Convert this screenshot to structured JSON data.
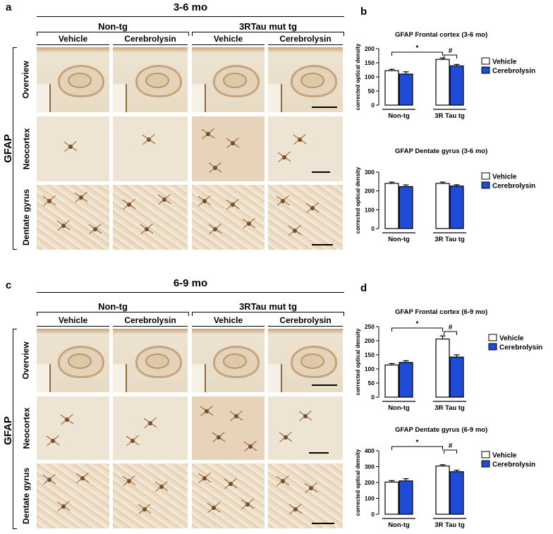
{
  "panels": {
    "a": "a",
    "b": "b",
    "c": "c",
    "d": "d"
  },
  "top": {
    "period": "3-6 mo",
    "groups": [
      "Non-tg",
      "3RTau mut tg"
    ],
    "conditions": [
      "Vehicle",
      "Cerebrolysin",
      "Vehicle",
      "Cerebrolysin"
    ],
    "rows": [
      "Overview",
      "Neocortex",
      "Dentate gyrus"
    ],
    "stain": "GFAP"
  },
  "bottom": {
    "period": "6-9 mo",
    "groups": [
      "Non-tg",
      "3RTau mut tg"
    ],
    "conditions": [
      "Vehicle",
      "Cerebrolysin",
      "Vehicle",
      "Cerebrolysin"
    ],
    "rows": [
      "Overview",
      "Neocortex",
      "Dentate gyrus"
    ],
    "stain": "GFAP"
  },
  "colors": {
    "vehicle": "#ffffff",
    "cerebrolysin": "#1e4bd8",
    "axis": "#000000"
  },
  "chart_data": [
    {
      "id": "b1",
      "type": "bar",
      "title": "GFAP Frontal cortex (3-6 mo)",
      "ylabel": "corrected optical density",
      "ylim": [
        0,
        200
      ],
      "yticks": [
        0,
        50,
        100,
        150,
        200
      ],
      "categories": [
        "Non-tg",
        "3R Tau tg"
      ],
      "series": [
        {
          "name": "Vehicle",
          "values": [
            122,
            162
          ],
          "errors": [
            5,
            5
          ]
        },
        {
          "name": "Cerebrolysin",
          "values": [
            110,
            139
          ],
          "errors": [
            8,
            5
          ]
        }
      ],
      "sig": [
        {
          "label": "*"
        },
        {
          "label": "#"
        }
      ]
    },
    {
      "id": "b2",
      "type": "bar",
      "title": "GFAP Dentate gyrus (3-6 mo)",
      "ylabel": "corrected optical density",
      "ylim": [
        0,
        300
      ],
      "yticks": [
        0,
        100,
        200,
        300
      ],
      "categories": [
        "Non-tg",
        "3R Tau tg"
      ],
      "series": [
        {
          "name": "Vehicle",
          "values": [
            240,
            240
          ],
          "errors": [
            7,
            7
          ]
        },
        {
          "name": "Cerebrolysin",
          "values": [
            223,
            226
          ],
          "errors": [
            9,
            7
          ]
        }
      ],
      "sig": []
    },
    {
      "id": "d1",
      "type": "bar",
      "title": "GFAP Frontal cortex (6-9 mo)",
      "ylabel": "corrected optical density",
      "ylim": [
        0,
        250
      ],
      "yticks": [
        0,
        50,
        100,
        150,
        200,
        250
      ],
      "categories": [
        "Non-tg",
        "3R Tau tg"
      ],
      "series": [
        {
          "name": "Vehicle",
          "values": [
            114,
            206
          ],
          "errors": [
            5,
            11
          ]
        },
        {
          "name": "Cerebrolysin",
          "values": [
            123,
            142
          ],
          "errors": [
            6,
            8
          ]
        }
      ],
      "sig": [
        {
          "label": "*"
        },
        {
          "label": "#"
        }
      ]
    },
    {
      "id": "d2",
      "type": "bar",
      "title": "GFAP Dentate gyrus (6-9 mo)",
      "ylabel": "corrected optical density",
      "ylim": [
        0,
        400
      ],
      "yticks": [
        0,
        100,
        200,
        300,
        400
      ],
      "categories": [
        "Non-tg",
        "3R Tau tg"
      ],
      "series": [
        {
          "name": "Vehicle",
          "values": [
            203,
            304
          ],
          "errors": [
            9,
            8
          ]
        },
        {
          "name": "Cerebrolysin",
          "values": [
            210,
            268
          ],
          "errors": [
            14,
            10
          ]
        }
      ],
      "sig": [
        {
          "label": "*"
        },
        {
          "label": "#"
        }
      ]
    }
  ]
}
